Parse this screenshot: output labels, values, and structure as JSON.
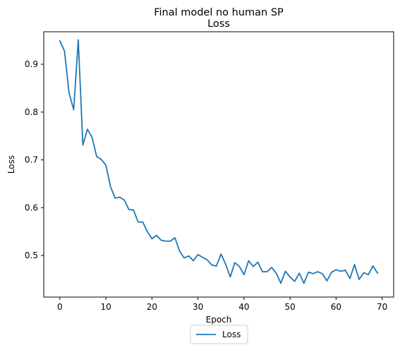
{
  "chart_data": {
    "type": "line",
    "title": "Final model no human SP",
    "subtitle": "Loss",
    "xlabel": "Epoch",
    "ylabel": "Loss",
    "xlim": [
      -3.5,
      72.5
    ],
    "ylim": [
      0.413,
      0.968
    ],
    "xticks": [
      0,
      10,
      20,
      30,
      40,
      50,
      60,
      70
    ],
    "yticks": [
      0.5,
      0.6,
      0.7,
      0.8,
      0.9
    ],
    "grid": false,
    "legend_position": "bottom-center",
    "series": [
      {
        "name": "Loss",
        "color": "#1f77b4",
        "x": [
          0,
          1,
          2,
          3,
          4,
          5,
          6,
          7,
          8,
          9,
          10,
          11,
          12,
          13,
          14,
          15,
          16,
          17,
          18,
          19,
          20,
          21,
          22,
          23,
          24,
          25,
          26,
          27,
          28,
          29,
          30,
          31,
          32,
          33,
          34,
          35,
          36,
          37,
          38,
          39,
          40,
          41,
          42,
          43,
          44,
          45,
          46,
          47,
          48,
          49,
          50,
          51,
          52,
          53,
          54,
          55,
          56,
          57,
          58,
          59,
          60,
          61,
          62,
          63,
          64,
          65,
          66,
          67,
          68,
          69
        ],
        "values": [
          0.949,
          0.928,
          0.84,
          0.805,
          0.951,
          0.731,
          0.764,
          0.747,
          0.707,
          0.701,
          0.689,
          0.644,
          0.62,
          0.622,
          0.616,
          0.596,
          0.595,
          0.57,
          0.57,
          0.55,
          0.535,
          0.542,
          0.532,
          0.53,
          0.53,
          0.537,
          0.509,
          0.495,
          0.499,
          0.489,
          0.502,
          0.496,
          0.491,
          0.48,
          0.478,
          0.503,
          0.482,
          0.455,
          0.485,
          0.477,
          0.46,
          0.489,
          0.477,
          0.486,
          0.466,
          0.466,
          0.475,
          0.463,
          0.442,
          0.467,
          0.455,
          0.446,
          0.463,
          0.442,
          0.465,
          0.462,
          0.466,
          0.462,
          0.447,
          0.465,
          0.47,
          0.467,
          0.469,
          0.452,
          0.481,
          0.45,
          0.464,
          0.46,
          0.478,
          0.463
        ]
      }
    ]
  }
}
